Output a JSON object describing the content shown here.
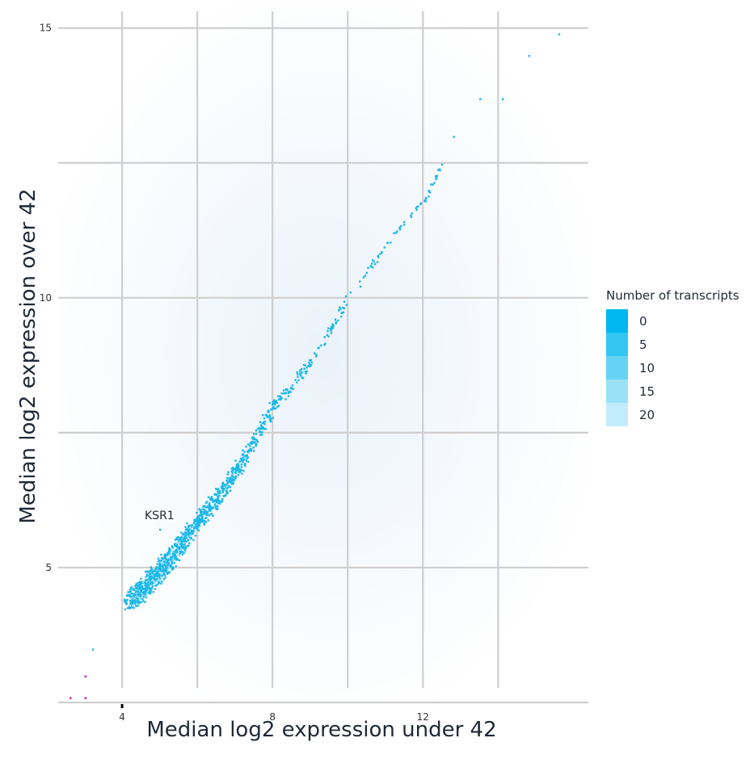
{
  "chart_data": {
    "type": "heatmap",
    "xlabel": "Median log2 expression under 42",
    "ylabel": "Median log2 expression over 42",
    "xlim": [
      2.3,
      16.4
    ],
    "ylim": [
      2.5,
      15.4
    ],
    "x_ticks": [
      4,
      8,
      12
    ],
    "x_gridlines": [
      4,
      6,
      8,
      10,
      12,
      14
    ],
    "y_ticks": [
      5,
      10,
      15
    ],
    "y_gridlines": [
      2.5,
      5,
      7.5,
      10,
      12.5,
      15
    ],
    "grid": true,
    "legend": {
      "title": "Number of transcripts",
      "placement": "right",
      "entries": [
        {
          "label": "0",
          "color": "#00b8ee"
        },
        {
          "label": "5",
          "color": "#33c6f0"
        },
        {
          "label": "10",
          "color": "#66d3f4"
        },
        {
          "label": "15",
          "color": "#99e1f7"
        },
        {
          "label": "20",
          "color": "#c3ecfa"
        }
      ]
    },
    "annotations": [
      {
        "text": "KSR1",
        "x": 4.6,
        "y": 5.9
      }
    ],
    "density_points": [
      [
        4.2,
        4.4
      ],
      [
        4.8,
        4.8
      ],
      [
        5.3,
        5.2
      ],
      [
        5.8,
        5.7
      ],
      [
        6.5,
        6.3
      ],
      [
        7.2,
        7.0
      ],
      [
        8.0,
        8.0
      ],
      [
        9.0,
        8.8
      ],
      [
        10.0,
        10.0
      ],
      [
        11.0,
        11.0
      ],
      [
        12.0,
        11.8
      ],
      [
        12.5,
        12.5
      ],
      [
        12.8,
        13.0
      ],
      [
        13.5,
        13.7
      ],
      [
        14.1,
        13.7
      ],
      [
        14.8,
        14.5
      ],
      [
        15.6,
        14.9
      ],
      [
        3.2,
        3.5
      ],
      [
        3.0,
        3.0
      ],
      [
        2.6,
        2.6
      ],
      [
        3.0,
        2.6
      ]
    ],
    "colors": {
      "bins": "#1ab8e8",
      "dense_bins": "#9fdcf2",
      "outlier_points": "#e026c0",
      "highlight_point": "#000000",
      "gridlines": "#cfcfcf",
      "background_glow": "#eef4fb"
    }
  }
}
